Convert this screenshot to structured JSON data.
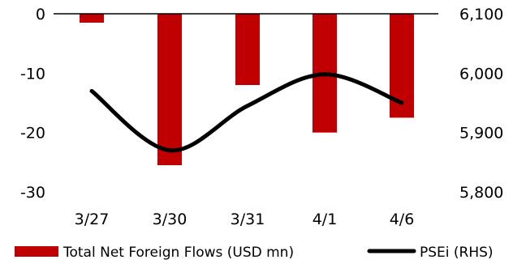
{
  "chart_data": {
    "type": "bar",
    "categories": [
      "3/27",
      "3/30",
      "3/31",
      "4/1",
      "4/6"
    ],
    "series": [
      {
        "name": "Total Net Foreign Flows (USD mn)",
        "type": "bar",
        "axis": "left",
        "color": "#c00000",
        "values": [
          -1.5,
          -25.5,
          -12.0,
          -20.0,
          -17.5
        ]
      },
      {
        "name": "PSEi (RHS)",
        "type": "line",
        "axis": "right",
        "color": "#000000",
        "smooth": true,
        "values": [
          5970,
          5870,
          5945,
          5998,
          5950
        ]
      }
    ],
    "y_left": {
      "ylim": [
        -30,
        0
      ],
      "ticks": [
        "0",
        "-10",
        "-20",
        "-30"
      ],
      "tick_values": [
        0,
        -10,
        -20,
        -30
      ]
    },
    "y_right": {
      "ylim": [
        5800,
        6100
      ],
      "ticks": [
        "6,100",
        "6,000",
        "5,900",
        "5,800"
      ],
      "tick_values": [
        6100,
        6000,
        5900,
        5800
      ]
    },
    "grid": false,
    "legend_position": "bottom"
  }
}
